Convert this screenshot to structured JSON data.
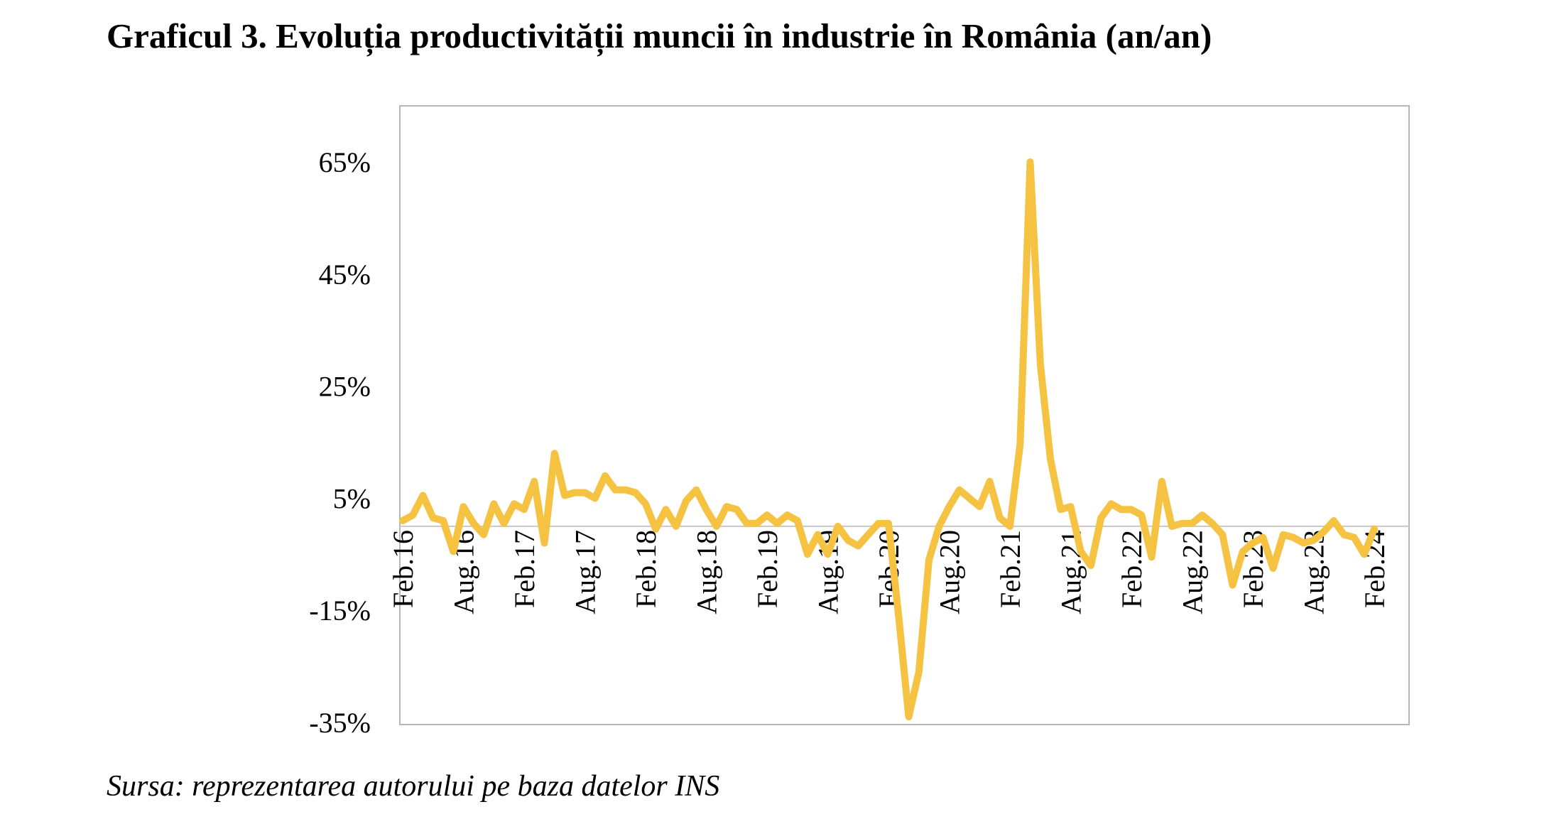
{
  "title": "Graficul 3. Evoluția productivității muncii în industrie în România (an/an)",
  "source": "Sursa: reprezentarea autorului pe baza datelor INS",
  "colors": {
    "line": "#F5C242",
    "frame": "#B7B7B7",
    "zero_line": "#C8C8C8",
    "text": "#000000"
  },
  "chart_data": {
    "type": "line",
    "title": "Graficul 3. Evoluția productivității muncii în industrie în România (an/an)",
    "xlabel": "",
    "ylabel": "",
    "ylim": [
      -35,
      75
    ],
    "y_ticks": [
      -35,
      -15,
      5,
      25,
      45,
      65
    ],
    "y_tick_labels": [
      "-35%",
      "-15%",
      "5%",
      "25%",
      "45%",
      "65%"
    ],
    "x_tick_labels": [
      "Feb.16",
      "Aug.16",
      "Feb.17",
      "Aug.17",
      "Feb.18",
      "Aug.18",
      "Feb.19",
      "Aug.19",
      "Feb.20",
      "Aug.20",
      "Feb.21",
      "Aug.21",
      "Feb.22",
      "Aug.22",
      "Feb.23",
      "Aug.23",
      "Feb.24"
    ],
    "grid": false,
    "legend": "none",
    "series": [
      {
        "values": [
          1,
          2,
          5.5,
          1.5,
          1,
          -4.5,
          3.5,
          0.5,
          -1.5,
          4,
          0.5,
          4,
          3,
          8,
          -3,
          13,
          5.5,
          6,
          6,
          5,
          9,
          6.5,
          6.5,
          6,
          4,
          -0.5,
          3,
          0,
          4.5,
          6.5,
          3,
          0,
          3.5,
          3,
          0.5,
          0.5,
          2,
          0.5,
          2,
          1,
          -5,
          -1.5,
          -5,
          0,
          -2.5,
          -3.5,
          -1.5,
          0.5,
          0.5,
          -16,
          -34,
          -26,
          -6,
          0,
          3.5,
          6.5,
          5,
          3.5,
          8,
          1.5,
          0,
          14.5,
          65,
          29,
          12,
          3,
          3.5,
          -4.5,
          -7,
          1.5,
          4,
          3,
          3,
          2,
          -5.5,
          8,
          0,
          0.5,
          0.5,
          2,
          0.5,
          -1.5,
          -10.5,
          -4.5,
          -3,
          -2,
          -7.5,
          -1.5,
          -2,
          -3,
          -2.5,
          -1,
          1,
          -1.5,
          -2,
          -5,
          -0.5
        ]
      }
    ]
  }
}
